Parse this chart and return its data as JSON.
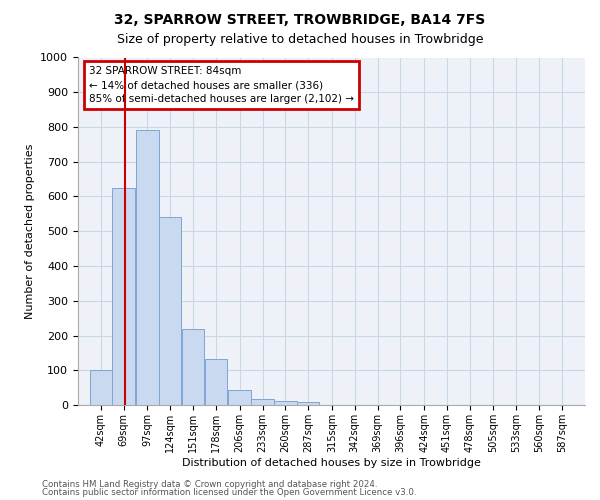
{
  "title1": "32, SPARROW STREET, TROWBRIDGE, BA14 7FS",
  "title2": "Size of property relative to detached houses in Trowbridge",
  "xlabel": "Distribution of detached houses by size in Trowbridge",
  "ylabel": "Number of detached properties",
  "bin_labels": [
    "42sqm",
    "69sqm",
    "97sqm",
    "124sqm",
    "151sqm",
    "178sqm",
    "206sqm",
    "233sqm",
    "260sqm",
    "287sqm",
    "315sqm",
    "342sqm",
    "369sqm",
    "396sqm",
    "424sqm",
    "451sqm",
    "478sqm",
    "505sqm",
    "533sqm",
    "560sqm",
    "587sqm"
  ],
  "bar_values": [
    102,
    625,
    790,
    540,
    220,
    133,
    42,
    17,
    12,
    8,
    0,
    0,
    0,
    0,
    0,
    0,
    0,
    0,
    0,
    0,
    0
  ],
  "bar_color": "#c9d9f0",
  "bar_edge_color": "#7ea6d4",
  "bin_edges": [
    42,
    69,
    97,
    124,
    151,
    178,
    206,
    233,
    260,
    287,
    315,
    342,
    369,
    396,
    424,
    451,
    478,
    505,
    533,
    560,
    587
  ],
  "ylim": [
    0,
    1000
  ],
  "yticks": [
    0,
    100,
    200,
    300,
    400,
    500,
    600,
    700,
    800,
    900,
    1000
  ],
  "vline_x": 84,
  "annotation_box_text_line1": "32 SPARROW STREET: 84sqm",
  "annotation_box_text_line2": "← 14% of detached houses are smaller (336)",
  "annotation_box_text_line3": "85% of semi-detached houses are larger (2,102) →",
  "annotation_box_color": "#cc0000",
  "grid_color": "#c8d8e8",
  "background_color": "#eef2f8",
  "footer1": "Contains HM Land Registry data © Crown copyright and database right 2024.",
  "footer2": "Contains public sector information licensed under the Open Government Licence v3.0."
}
